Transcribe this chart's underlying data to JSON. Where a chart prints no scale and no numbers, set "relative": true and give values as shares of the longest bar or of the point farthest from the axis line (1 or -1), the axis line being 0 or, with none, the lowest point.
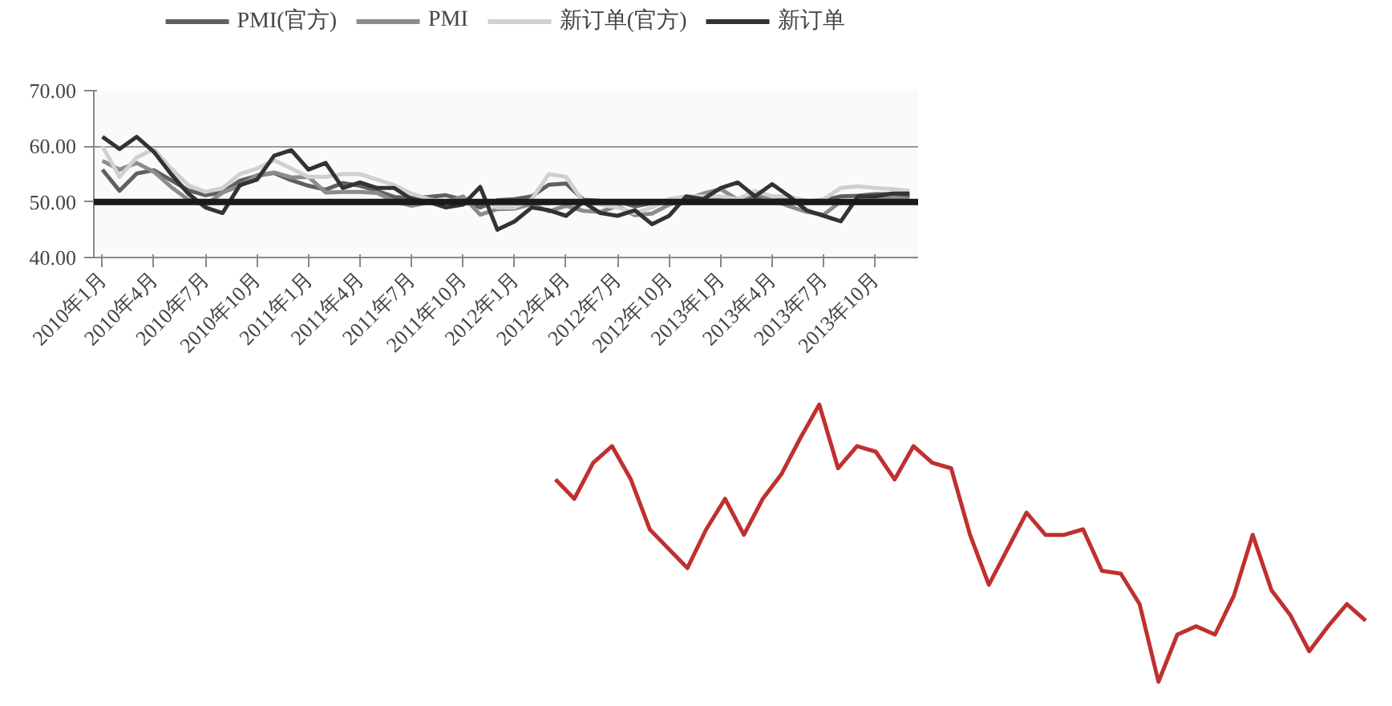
{
  "chart_data": [
    {
      "type": "line",
      "categories": [
        "2010年1月",
        null,
        null,
        "2010年4月",
        null,
        null,
        "2010年7月",
        null,
        null,
        "2010年10月",
        null,
        null,
        "2011年1月",
        null,
        null,
        "2011年4月",
        null,
        null,
        "2011年7月",
        null,
        null,
        "2011年10月",
        null,
        null,
        "2012年1月",
        null,
        null,
        "2012年4月",
        null,
        null,
        "2012年7月",
        null,
        null,
        "2012年10月",
        null,
        null,
        "2013年1月",
        null,
        null,
        "2013年4月",
        null,
        null,
        "2013年7月",
        null,
        null,
        "2013年10月",
        null,
        null
      ],
      "series": [
        {
          "name": "PMI(官方)",
          "color": "#606060",
          "values": [
            55.8,
            52,
            55.1,
            55.7,
            53.9,
            52.1,
            51.2,
            51.7,
            53.8,
            54.7,
            55.2,
            53.9,
            52.9,
            52.2,
            53.4,
            52.9,
            52,
            50.9,
            50.7,
            50.9,
            51.2,
            50.4,
            49,
            50.3,
            50.5,
            51,
            53.1,
            53.3,
            50.4,
            50.2,
            50.1,
            49.2,
            49.8,
            50.2,
            50.6,
            50.6,
            50.4,
            50.1,
            50.9,
            50.6,
            50.8,
            50.1,
            50.3,
            51,
            51.1,
            51.4,
            51.4,
            51
          ]
        },
        {
          "name": "PMI",
          "color": "#8c8c8c",
          "values": [
            57.4,
            55.8,
            57,
            55.4,
            52.7,
            50.4,
            49.4,
            51.7,
            52.9,
            54.8,
            55.3,
            54.4,
            54.5,
            51.7,
            51.8,
            51.8,
            51.6,
            50.1,
            49.3,
            49.9,
            49.9,
            51,
            47.7,
            48.7,
            48.8,
            49.6,
            48.3,
            49.3,
            48.4,
            48.2,
            49.3,
            47.6,
            47.9,
            49.5,
            50.5,
            51.5,
            52.3,
            50.4,
            51.6,
            50.4,
            49.2,
            48.2,
            47.7,
            50.1,
            50.2,
            50.9,
            50.8,
            50.5
          ]
        },
        {
          "name": "新订单(官方)",
          "color": "#d0d0d0",
          "values": [
            60,
            54.5,
            58,
            59.5,
            56,
            53,
            51.8,
            52.5,
            55,
            56,
            57.5,
            56,
            54.5,
            54.5,
            55,
            55,
            54,
            53,
            51.5,
            50.5,
            50,
            49.5,
            50,
            49,
            49,
            50.5,
            55,
            54.5,
            50,
            49.5,
            49,
            48,
            49,
            50.5,
            51,
            51,
            51,
            50.5,
            52,
            51,
            51,
            50,
            50.5,
            52.5,
            52.8,
            52.5,
            52.3,
            52
          ]
        },
        {
          "name": "新订单",
          "color": "#333333",
          "values": [
            61.7,
            59.5,
            61.7,
            59,
            55,
            51.5,
            49,
            48,
            53,
            54,
            58.3,
            59.3,
            55.8,
            57,
            52.5,
            53.5,
            52.5,
            52.5,
            50.5,
            50,
            49,
            49.5,
            52.7,
            45,
            46.5,
            49,
            48.5,
            47.5,
            50,
            48,
            47.5,
            48.5,
            46,
            47.5,
            51,
            50.5,
            52.5,
            53.5,
            51,
            53.2,
            51,
            48.5,
            47.5,
            46.5,
            51,
            51,
            51.5,
            51.5
          ]
        }
      ],
      "ylim": [
        40,
        70
      ],
      "yticks": [
        {
          "value": 40,
          "label": "40.00"
        },
        {
          "value": 50,
          "label": "50.00"
        },
        {
          "value": 60,
          "label": "60.00"
        },
        {
          "value": 70,
          "label": "70.00"
        }
      ],
      "ref_lines": [
        {
          "axis": "y",
          "value": 50,
          "color": "#1a1a1a"
        }
      ],
      "grid": "y",
      "legend": "top",
      "marker": "none",
      "line_style": "solid"
    },
    {
      "type": "line",
      "relative": true,
      "categories": [
        null,
        null,
        null,
        null,
        null,
        null,
        null,
        null,
        null,
        null,
        null,
        null,
        null,
        null,
        null,
        null,
        null,
        null,
        null,
        null,
        null,
        null,
        null,
        null,
        null,
        null,
        null,
        null,
        null,
        null,
        null,
        null,
        null,
        null,
        null,
        null,
        null,
        null,
        null,
        null,
        null,
        null,
        null,
        null
      ],
      "series": [
        {
          "color": "#c03030",
          "values": [
            0.73,
            0.66,
            0.79,
            0.85,
            0.73,
            0.55,
            0.48,
            0.41,
            0.55,
            0.66,
            0.53,
            0.66,
            0.75,
            0.88,
            1,
            0.77,
            0.85,
            0.83,
            0.73,
            0.85,
            0.79,
            0.77,
            0.53,
            0.35,
            0.48,
            0.61,
            0.53,
            0.53,
            0.55,
            0.4,
            0.39,
            0.28,
            0,
            0.17,
            0.2,
            0.17,
            0.31,
            0.53,
            0.33,
            0.24,
            0.11,
            0.2,
            0.28,
            0.22
          ]
        }
      ],
      "tick_labels": false,
      "grid": false,
      "marker": "none",
      "line_style": "solid"
    }
  ]
}
